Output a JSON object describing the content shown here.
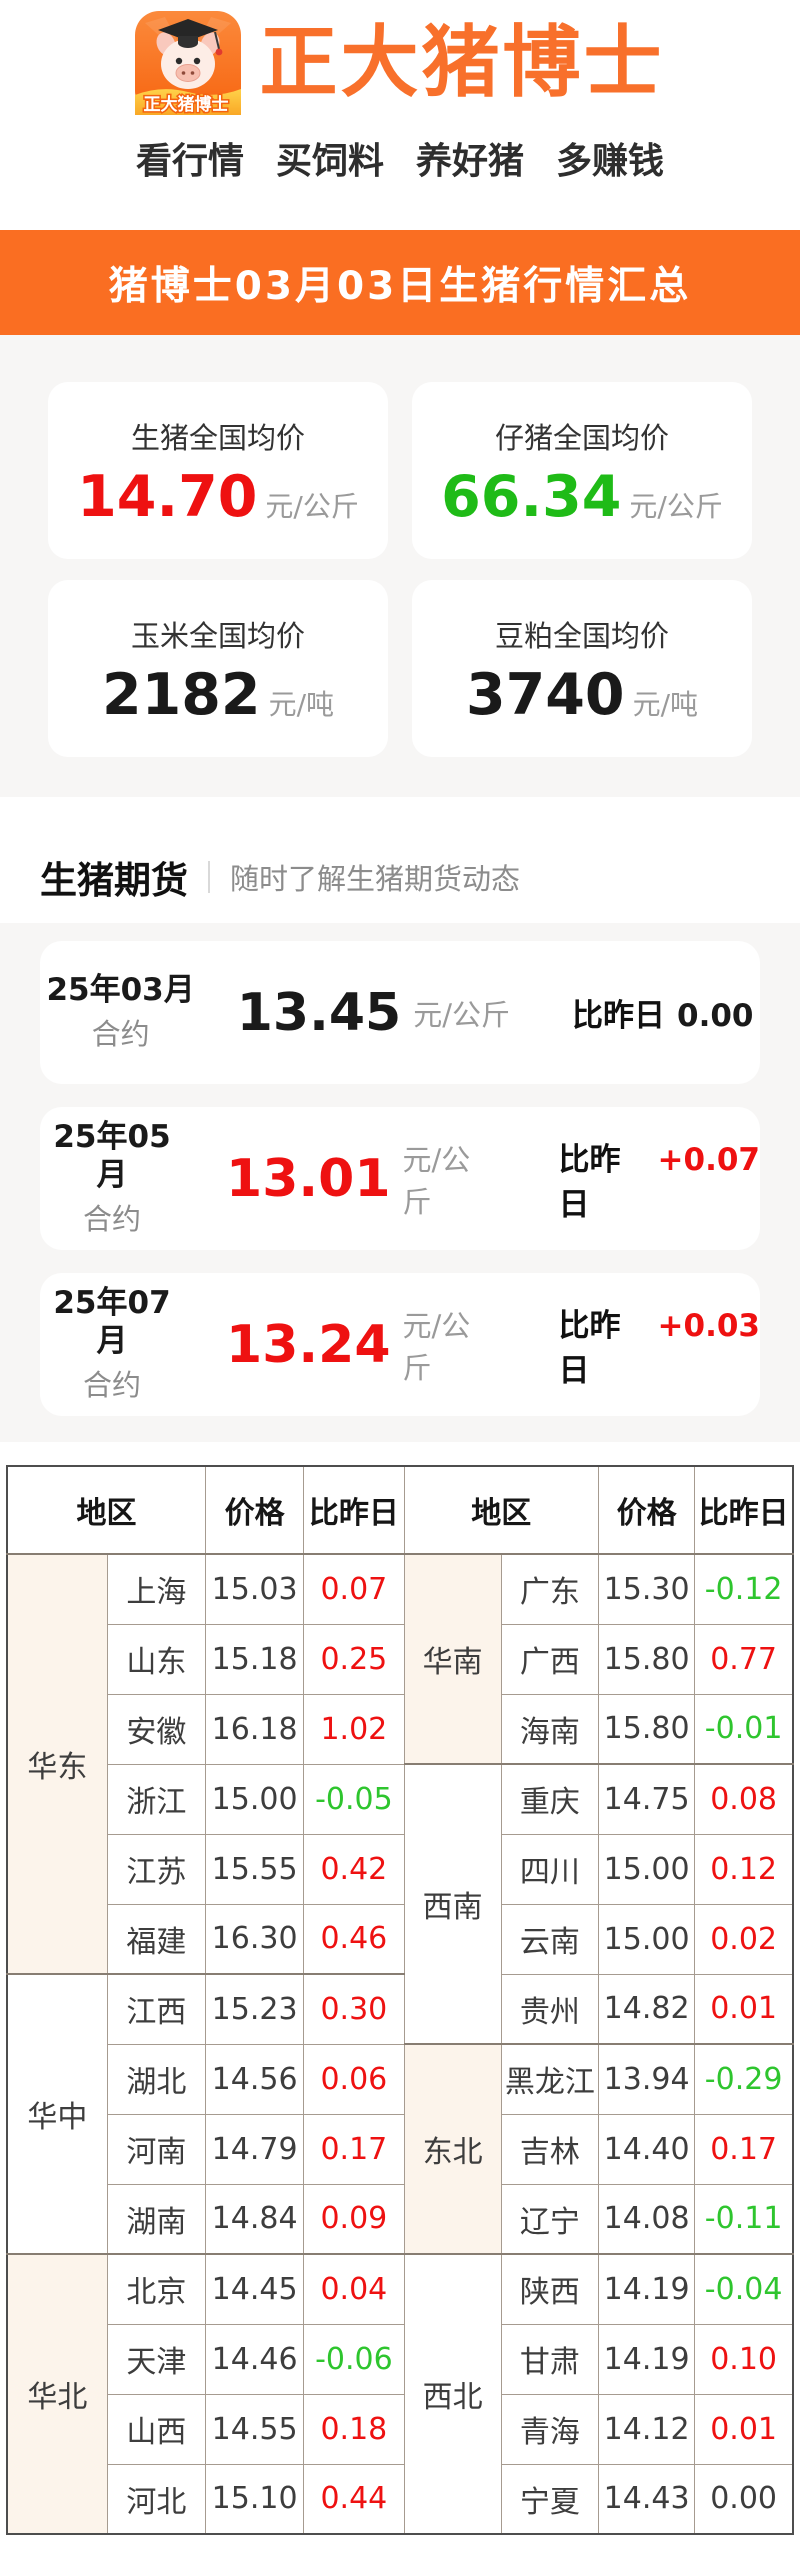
{
  "colors": {
    "accent_orange": "#F8702B",
    "banner_orange": "#FA6E22",
    "up_red": "#EE1111",
    "down_green": "#2EC52E",
    "big_green": "#1FBB17",
    "neutral_dark": "#3d3d3d"
  },
  "header": {
    "app_title": "正大猪博士",
    "logo_badge_text": "正大猪博士",
    "tagline": [
      "看行情",
      "买饲料",
      "养好猪",
      "多赚钱"
    ]
  },
  "summary": {
    "banner_title": "猪博士03月03日生猪行情汇总",
    "cards": [
      {
        "label": "生猪全国均价",
        "value": "14.70",
        "unit": "元/公斤",
        "value_color": "#EE1111"
      },
      {
        "label": "仔猪全国均价",
        "value": "66.34",
        "unit": "元/公斤",
        "value_color": "#1FBB17"
      },
      {
        "label": "玉米全国均价",
        "value": "2182",
        "unit": "元/吨",
        "value_color": "#1a1a1a"
      },
      {
        "label": "豆粕全国均价",
        "value": "3740",
        "unit": "元/吨",
        "value_color": "#1a1a1a"
      }
    ]
  },
  "futures": {
    "section_title": "生猪期货",
    "section_subtitle": "随时了解生猪期货动态",
    "contract_label": "合约",
    "unit": "元/公斤",
    "compare_label": "比昨日",
    "items": [
      {
        "contract_month": "25年03月",
        "price": "13.45",
        "price_color": "#1a1a1a",
        "change": "0.00",
        "change_color": "#1a1a1a"
      },
      {
        "contract_month": "25年05月",
        "price": "13.01",
        "price_color": "#EE1111",
        "change": "+0.07",
        "change_color": "#EE1111"
      },
      {
        "contract_month": "25年07月",
        "price": "13.24",
        "price_color": "#EE1111",
        "change": "+0.03",
        "change_color": "#EE1111"
      }
    ]
  },
  "price_table": {
    "column_headers": {
      "region": "地区",
      "price": "价格",
      "change": "比昨日"
    },
    "left_groups": [
      {
        "region": "华东",
        "rows": [
          [
            "上海",
            "15.03",
            "0.07"
          ],
          [
            "山东",
            "15.18",
            "0.25"
          ],
          [
            "安徽",
            "16.18",
            "1.02"
          ],
          [
            "浙江",
            "15.00",
            "-0.05"
          ],
          [
            "江苏",
            "15.55",
            "0.42"
          ],
          [
            "福建",
            "16.30",
            "0.46"
          ]
        ]
      },
      {
        "region": "华中",
        "rows": [
          [
            "江西",
            "15.23",
            "0.30"
          ],
          [
            "湖北",
            "14.56",
            "0.06"
          ],
          [
            "河南",
            "14.79",
            "0.17"
          ],
          [
            "湖南",
            "14.84",
            "0.09"
          ]
        ]
      },
      {
        "region": "华北",
        "rows": [
          [
            "北京",
            "14.45",
            "0.04"
          ],
          [
            "天津",
            "14.46",
            "-0.06"
          ],
          [
            "山西",
            "14.55",
            "0.18"
          ],
          [
            "河北",
            "15.10",
            "0.44"
          ]
        ]
      }
    ],
    "right_groups": [
      {
        "region": "华南",
        "rows": [
          [
            "广东",
            "15.30",
            "-0.12"
          ],
          [
            "广西",
            "15.80",
            "0.77"
          ],
          [
            "海南",
            "15.80",
            "-0.01"
          ]
        ]
      },
      {
        "region": "西南",
        "rows": [
          [
            "重庆",
            "14.75",
            "0.08"
          ],
          [
            "四川",
            "15.00",
            "0.12"
          ],
          [
            "云南",
            "15.00",
            "0.02"
          ],
          [
            "贵州",
            "14.82",
            "0.01"
          ]
        ]
      },
      {
        "region": "东北",
        "rows": [
          [
            "黑龙江",
            "13.94",
            "-0.29"
          ],
          [
            "吉林",
            "14.40",
            "0.17"
          ],
          [
            "辽宁",
            "14.08",
            "-0.11"
          ]
        ]
      },
      {
        "region": "西北",
        "rows": [
          [
            "陕西",
            "14.19",
            "-0.04"
          ],
          [
            "甘肃",
            "14.19",
            "0.10"
          ],
          [
            "青海",
            "14.12",
            "0.01"
          ],
          [
            "宁夏",
            "14.43",
            "0.00"
          ]
        ]
      }
    ]
  }
}
